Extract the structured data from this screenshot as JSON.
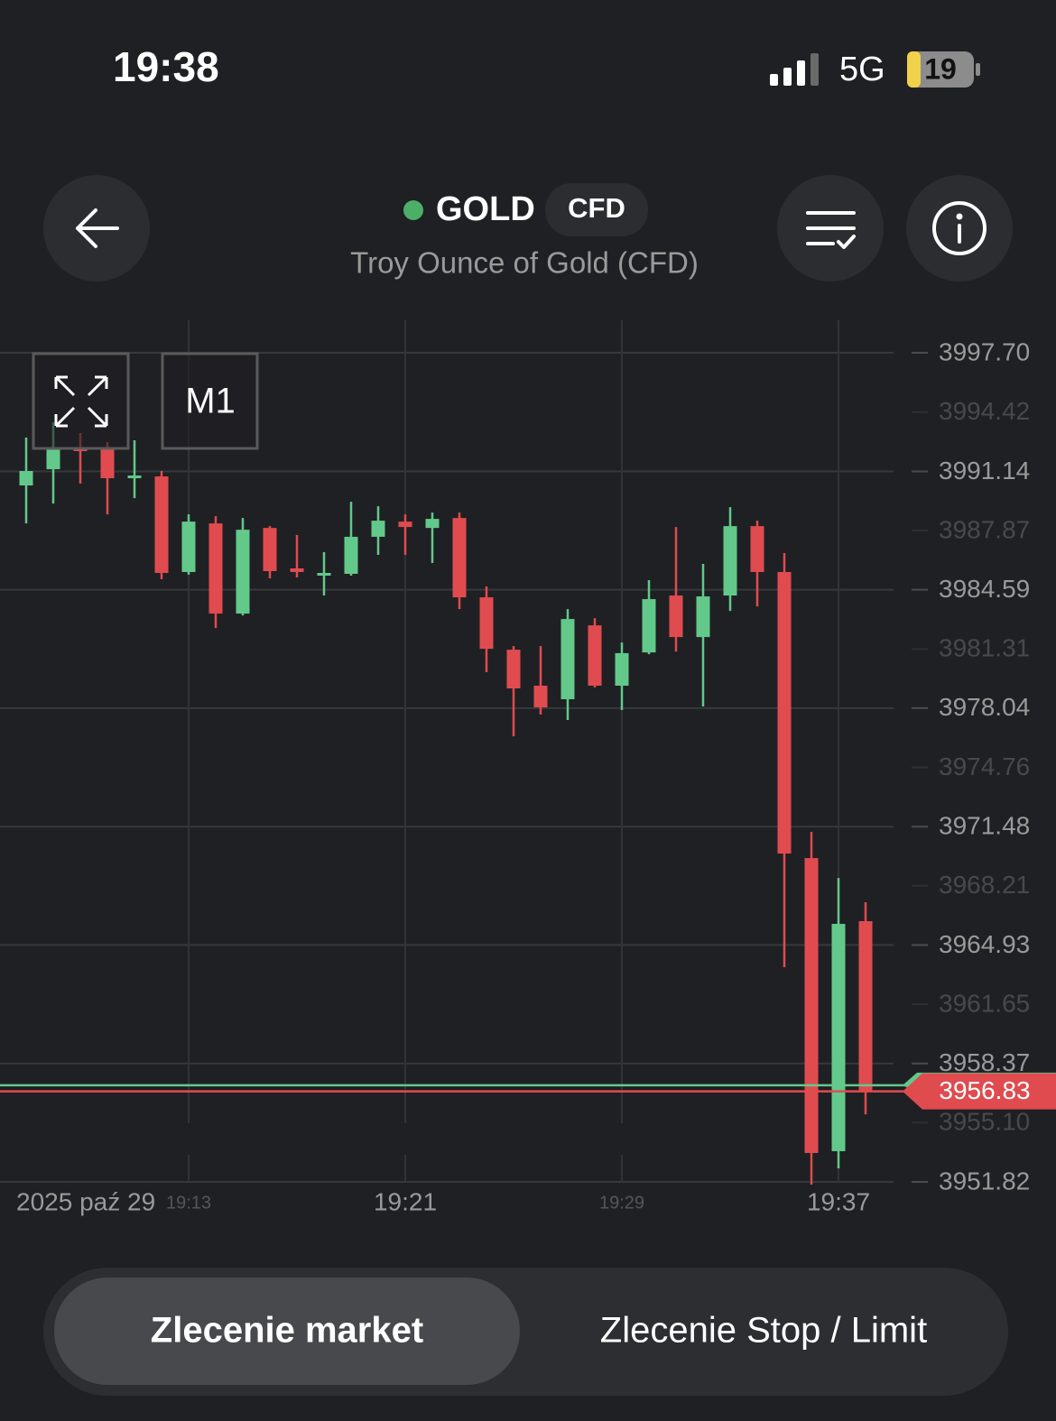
{
  "status": {
    "time": "19:38",
    "network": "5G",
    "battery": "19"
  },
  "header": {
    "symbol": "GOLD",
    "badge": "CFD",
    "subtitle": "Troy Ounce of Gold (CFD)"
  },
  "controls": {
    "timeframe": "M1"
  },
  "tabs": [
    "Zlecenie market",
    "Zlecenie Stop / Limit"
  ],
  "chart_data": {
    "type": "candlestick",
    "date_label": "2025 paź 29",
    "categories": [
      null,
      null,
      null,
      null,
      null,
      null,
      "19:13",
      null,
      null,
      null,
      null,
      null,
      null,
      null,
      "19:21",
      null,
      null,
      null,
      null,
      null,
      null,
      null,
      "19:29",
      null,
      null,
      null,
      null,
      null,
      null,
      null,
      "19:37",
      null
    ],
    "open": [
      3990.36,
      3991.26,
      3992.41,
      3992.36,
      3990.76,
      3990.86,
      3985.57,
      3988.26,
      3983.27,
      3988.01,
      3985.77,
      3985.42,
      3985.47,
      3987.52,
      3988.36,
      3988.01,
      3988.56,
      3984.17,
      3981.27,
      3979.28,
      3978.53,
      3982.62,
      3979.28,
      3981.12,
      3984.27,
      3981.97,
      3984.27,
      3988.11,
      3985.57,
      3969.74,
      3953.52,
      3966.25
    ],
    "high": [
      3993.01,
      3993.86,
      3993.26,
      3992.76,
      3992.86,
      3991.16,
      3988.76,
      3988.66,
      3988.56,
      3988.11,
      3987.62,
      3986.67,
      3989.46,
      3989.21,
      3988.76,
      3988.86,
      3988.86,
      3984.77,
      3981.47,
      3981.47,
      3983.52,
      3983.02,
      3981.67,
      3985.12,
      3988.06,
      3986.02,
      3989.16,
      3988.41,
      3986.62,
      3971.19,
      3968.64,
      3967.3
    ],
    "low": [
      3988.26,
      3989.36,
      3990.46,
      3988.76,
      3989.66,
      3985.17,
      3985.42,
      3982.47,
      3983.17,
      3985.22,
      3985.27,
      3984.27,
      3985.37,
      3986.52,
      3986.52,
      3986.07,
      3983.52,
      3980.03,
      3976.48,
      3977.68,
      3977.38,
      3979.18,
      3977.93,
      3981.02,
      3981.17,
      3978.13,
      3983.42,
      3983.67,
      3963.7,
      3951.67,
      3952.57,
      3955.56
    ],
    "close": [
      3991.16,
      3992.36,
      3992.26,
      3990.76,
      3990.91,
      3985.52,
      3988.36,
      3983.27,
      3987.91,
      3985.62,
      3985.57,
      3985.52,
      3987.52,
      3988.41,
      3988.06,
      3988.51,
      3984.17,
      3981.32,
      3979.13,
      3978.08,
      3982.97,
      3979.28,
      3981.08,
      3984.07,
      3981.97,
      3984.22,
      3988.11,
      3985.57,
      3969.99,
      3953.42,
      3966.1,
      3956.83
    ],
    "up_color": "#62c98b",
    "down_color": "#e04b4f",
    "bid": 3956.83,
    "ask": 3957.17,
    "ylim": [
      3951.82,
      3999.5
    ],
    "yticks": [
      {
        "value": 3997.7,
        "label": "3997.70"
      },
      3994.42,
      3991.14,
      3987.87,
      3984.59,
      3981.31,
      3978.04,
      3974.76,
      3971.48,
      3968.21,
      3964.93,
      3961.65,
      3958.37,
      {
        "value": 3955.1,
        "label": "3955.10"
      },
      3951.82
    ],
    "grid": true
  }
}
